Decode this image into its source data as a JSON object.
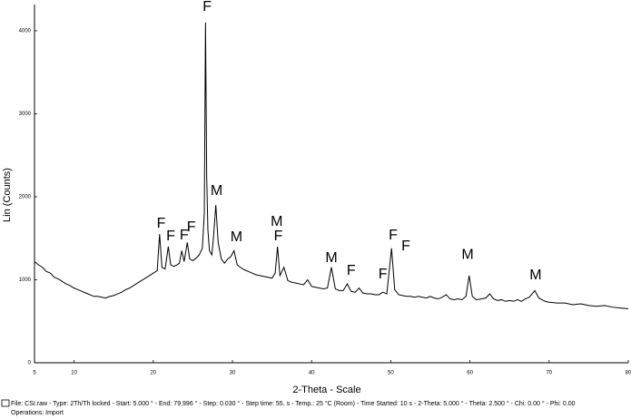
{
  "chart_data": {
    "type": "line",
    "ylabel": "Lin (Counts)",
    "xlabel": "2-Theta - Scale",
    "color": "#000000",
    "xlim": [
      5,
      80
    ],
    "xticks": [
      5,
      10,
      20,
      30,
      40,
      50,
      60,
      70,
      80
    ],
    "ylim": [
      0,
      4300
    ],
    "yticks": [
      0,
      1000,
      2000,
      3000,
      4000
    ],
    "x": [
      5,
      5.5,
      6,
      6.5,
      7,
      7.5,
      8,
      8.5,
      9,
      9.5,
      10,
      10.5,
      11,
      11.5,
      12,
      12.5,
      13,
      13.5,
      14,
      14.5,
      15,
      15.5,
      16,
      16.5,
      17,
      17.5,
      18,
      18.5,
      19,
      19.5,
      20,
      20.5,
      20.8,
      21.1,
      21.5,
      21.9,
      22.2,
      22.6,
      23,
      23.3,
      23.6,
      23.9,
      24.3,
      24.6,
      25,
      25.4,
      25.8,
      26.2,
      26.45,
      26.6,
      26.75,
      26.9,
      27.1,
      27.4,
      27.6,
      27.9,
      28.2,
      28.6,
      29,
      29.4,
      29.8,
      30.2,
      30.6,
      31,
      31.5,
      32,
      32.5,
      33,
      33.5,
      34,
      34.5,
      35,
      35.4,
      35.7,
      36,
      36.5,
      37,
      37.5,
      38,
      38.5,
      39,
      39.5,
      40,
      40.5,
      41,
      41.5,
      42,
      42.5,
      43,
      43.5,
      44,
      44.5,
      45,
      45.5,
      46,
      46.5,
      47,
      47.5,
      48,
      48.5,
      49,
      49.5,
      50.1,
      50.5,
      51,
      51.5,
      52,
      52.5,
      53,
      53.5,
      54,
      54.5,
      55,
      55.5,
      56,
      56.5,
      57,
      57.5,
      58,
      58.5,
      59,
      59.5,
      59.9,
      60.3,
      60.8,
      61.5,
      62,
      62.5,
      63,
      63.5,
      64,
      64.5,
      65,
      65.5,
      66,
      66.5,
      67,
      67.5,
      68.2,
      68.7,
      69.5,
      70,
      71,
      72,
      73,
      74,
      75,
      76,
      77,
      78,
      79,
      80
    ],
    "values": [
      1220,
      1180,
      1150,
      1100,
      1080,
      1030,
      1010,
      980,
      950,
      930,
      900,
      880,
      860,
      840,
      820,
      800,
      800,
      790,
      780,
      800,
      810,
      830,
      850,
      880,
      900,
      930,
      960,
      990,
      1020,
      1050,
      1080,
      1110,
      1550,
      1150,
      1130,
      1400,
      1180,
      1160,
      1180,
      1200,
      1350,
      1220,
      1450,
      1250,
      1230,
      1260,
      1300,
      1380,
      1800,
      4100,
      2250,
      1600,
      1350,
      1300,
      1500,
      1900,
      1450,
      1250,
      1200,
      1250,
      1280,
      1350,
      1180,
      1150,
      1120,
      1100,
      1080,
      1060,
      1050,
      1040,
      1030,
      1020,
      1080,
      1400,
      1050,
      1150,
      990,
      970,
      960,
      950,
      940,
      1000,
      920,
      910,
      900,
      890,
      900,
      1150,
      890,
      870,
      870,
      950,
      860,
      850,
      900,
      840,
      830,
      830,
      820,
      820,
      850,
      830,
      1380,
      880,
      820,
      810,
      800,
      800,
      790,
      800,
      790,
      780,
      800,
      780,
      770,
      790,
      820,
      770,
      760,
      770,
      760,
      800,
      1050,
      800,
      760,
      770,
      780,
      830,
      770,
      750,
      760,
      740,
      750,
      740,
      760,
      740,
      770,
      790,
      870,
      780,
      740,
      730,
      720,
      720,
      700,
      710,
      690,
      680,
      690,
      670,
      660,
      650
    ],
    "annotations": [
      {
        "text": "F",
        "x": 21.0,
        "y": 1672
      },
      {
        "text": "F",
        "x": 22.2,
        "y": 1519
      },
      {
        "text": "F",
        "x": 23.9,
        "y": 1530
      },
      {
        "text": "F",
        "x": 24.8,
        "y": 1628
      },
      {
        "text": "F",
        "x": 26.8,
        "y": 4284
      },
      {
        "text": "M",
        "x": 28.0,
        "y": 2066
      },
      {
        "text": "M",
        "x": 30.5,
        "y": 1508
      },
      {
        "text": "M",
        "x": 35.6,
        "y": 1694
      },
      {
        "text": "F",
        "x": 35.8,
        "y": 1519
      },
      {
        "text": "M",
        "x": 42.5,
        "y": 1257
      },
      {
        "text": "F",
        "x": 45.0,
        "y": 1104
      },
      {
        "text": "F",
        "x": 49.0,
        "y": 1060
      },
      {
        "text": "F",
        "x": 50.3,
        "y": 1530
      },
      {
        "text": "F",
        "x": 51.9,
        "y": 1399
      },
      {
        "text": "M",
        "x": 59.7,
        "y": 1300
      },
      {
        "text": "M",
        "x": 68.3,
        "y": 1049
      }
    ],
    "footer": [
      "File: CSI.raw - Type: 2Th/Th locked - Start: 5.000 ° - End: 79.996 ° - Step: 0.030 ° - Step time: 55. s - Temp.: 25 °C (Room) - Time Started: 10 s - 2-Theta: 5.000 ° - Theta: 2.500 ° - Chi: 0.00 ° - Phi: 0.00",
      "Operations: Import"
    ]
  }
}
